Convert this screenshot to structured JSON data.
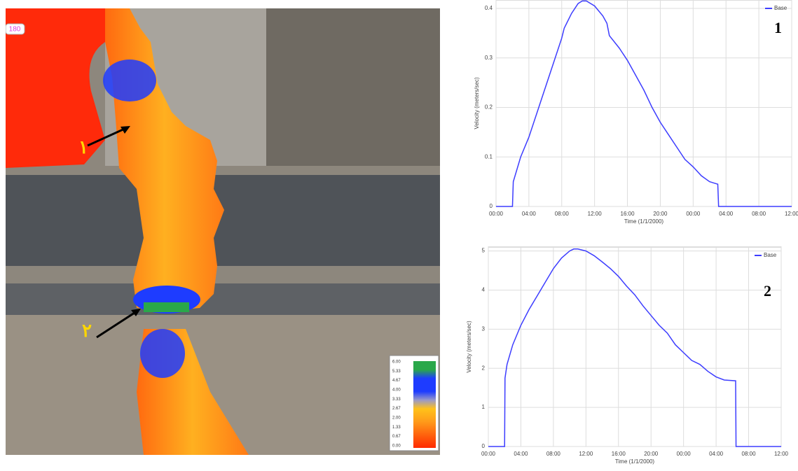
{
  "chart_data": [
    {
      "type": "line",
      "ylabel": "Velocity (meters/sec)",
      "xlabel": "Time (1/1/2000)",
      "annotation": "1",
      "legend": "upper right",
      "series": [
        {
          "name": "Base",
          "color": "#3d3dff",
          "x": [
            0,
            2.0,
            2.1,
            3,
            4,
            5,
            6,
            7,
            8,
            8.3,
            8.6,
            9.2,
            10,
            10.5,
            11,
            12,
            13,
            13.5,
            13.8,
            15,
            16,
            17,
            18,
            19,
            20,
            21,
            22,
            23,
            24,
            25,
            26,
            27.0,
            27.1,
            36
          ],
          "values": [
            0,
            0,
            0.05,
            0.1,
            0.14,
            0.19,
            0.24,
            0.29,
            0.34,
            0.36,
            0.37,
            0.39,
            0.41,
            0.415,
            0.415,
            0.405,
            0.385,
            0.37,
            0.345,
            0.32,
            0.295,
            0.265,
            0.235,
            0.2,
            0.17,
            0.145,
            0.12,
            0.095,
            0.08,
            0.062,
            0.05,
            0.045,
            0,
            0
          ]
        }
      ],
      "xlim": [
        0,
        36
      ],
      "ylim": [
        0,
        0.417
      ],
      "yticks": [
        0,
        0.1,
        0.2,
        0.3,
        0.4
      ],
      "xticks": [
        {
          "value": 0,
          "label": "00:00"
        },
        {
          "value": 4,
          "label": "04:00"
        },
        {
          "value": 8,
          "label": "08:00"
        },
        {
          "value": 12,
          "label": "12:00"
        },
        {
          "value": 16,
          "label": "16:00"
        },
        {
          "value": 20,
          "label": "20:00"
        },
        {
          "value": 24,
          "label": "00:00"
        },
        {
          "value": 28,
          "label": "04:00"
        },
        {
          "value": 32,
          "label": "08:00"
        },
        {
          "value": 36,
          "label": "12:00"
        }
      ],
      "grid": true
    },
    {
      "type": "line",
      "ylabel": "Velocity (meters/sec)",
      "xlabel": "Time (1/1/2000)",
      "annotation": "2",
      "legend": "upper right",
      "series": [
        {
          "name": "Base",
          "color": "#3d3dff",
          "x": [
            0,
            2.0,
            2.05,
            2.3,
            3,
            4,
            5,
            6,
            7,
            8,
            9,
            10,
            10.5,
            11,
            12,
            13,
            14,
            15,
            16,
            17,
            18,
            19,
            20,
            21,
            22,
            23,
            24,
            25,
            26,
            27,
            28,
            29,
            30.4,
            30.45,
            36
          ],
          "values": [
            0,
            0,
            1.75,
            2.1,
            2.6,
            3.1,
            3.5,
            3.85,
            4.2,
            4.55,
            4.82,
            5.0,
            5.05,
            5.05,
            5.0,
            4.88,
            4.72,
            4.55,
            4.35,
            4.1,
            3.88,
            3.6,
            3.35,
            3.1,
            2.9,
            2.6,
            2.4,
            2.2,
            2.1,
            1.92,
            1.78,
            1.7,
            1.68,
            0,
            0
          ]
        }
      ],
      "xlim": [
        0,
        36
      ],
      "ylim": [
        0,
        5.1
      ],
      "yticks": [
        0,
        1,
        2,
        3,
        4,
        5
      ],
      "xticks": [
        {
          "value": 0,
          "label": "00:00"
        },
        {
          "value": 4,
          "label": "04:00"
        },
        {
          "value": 8,
          "label": "08:00"
        },
        {
          "value": 12,
          "label": "12:00"
        },
        {
          "value": 16,
          "label": "16:00"
        },
        {
          "value": 20,
          "label": "20:00"
        },
        {
          "value": 24,
          "label": "00:00"
        },
        {
          "value": 28,
          "label": "04:00"
        },
        {
          "value": 32,
          "label": "08:00"
        },
        {
          "value": 36,
          "label": "12:00"
        }
      ],
      "grid": true
    }
  ],
  "map": {
    "badge": "180",
    "label_1": "۱",
    "label_2": "۲",
    "colorbar_ticks": [
      "6.00",
      "5.33",
      "4.67",
      "4.00",
      "3.33",
      "2.67",
      "2.00",
      "1.33",
      "0.67",
      "0.00"
    ]
  }
}
